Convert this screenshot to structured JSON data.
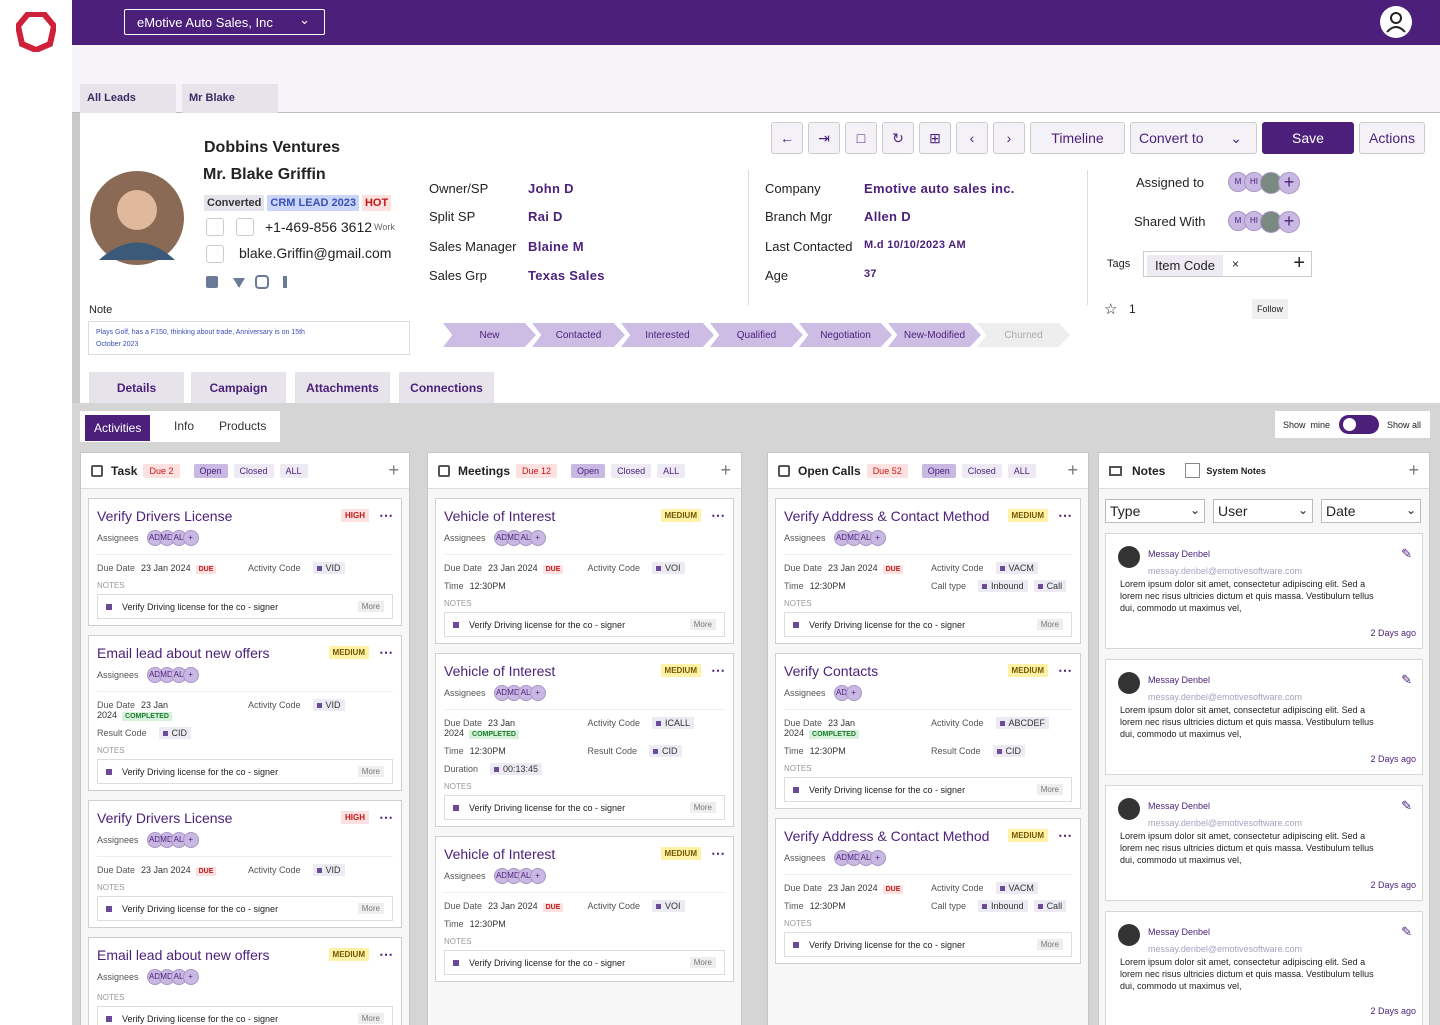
{
  "header": {
    "company_select": "eMotive Auto Sales, Inc"
  },
  "tabs": [
    "All Leads",
    "Mr Blake"
  ],
  "lead": {
    "company": "Dobbins Ventures",
    "name": "Mr. Blake Griffin",
    "badges": [
      "Converted",
      "CRM LEAD 2023",
      "HOT"
    ],
    "phone": "+1-469-856 3612",
    "phone_type": "Work",
    "email": "blake.Griffin@gmail.com",
    "note_label": "Note",
    "note": "Plays Golf, has a F150, thinking about trade, Anniversary is on 15th October 2023"
  },
  "toolbar": {
    "timeline": "Timeline",
    "convert": "Convert to",
    "save": "Save",
    "actions": "Actions"
  },
  "details_left": [
    {
      "label": "Owner/SP",
      "value": "John D"
    },
    {
      "label": "Split SP",
      "value": "Rai D"
    },
    {
      "label": "Sales Manager",
      "value": "Blaine M"
    },
    {
      "label": "Sales Grp",
      "value": "Texas  Sales"
    }
  ],
  "details_right": [
    {
      "label": "Company",
      "value": "Emotive auto sales inc."
    },
    {
      "label": "Branch Mgr",
      "value": "Allen D"
    },
    {
      "label": "Last Contacted",
      "value": "M.d 10/10/2023 AM"
    },
    {
      "label": "Age",
      "value": "37"
    }
  ],
  "sharing": {
    "assigned_label": "Assigned to",
    "assigned_avatars": [
      "M",
      "HI"
    ],
    "shared_label": "Shared With",
    "shared_avatars": [
      "M",
      "HI"
    ],
    "tags_label": "Tags",
    "tag": "Item Code",
    "stars": "1",
    "follow": "Follow"
  },
  "stages": [
    "New",
    "Contacted",
    "Interested",
    "Qualified",
    "Negotiation",
    "New-Modified",
    "Churned"
  ],
  "section_tabs": [
    "Details",
    "Campaign",
    "Attachments",
    "Connections"
  ],
  "sub_tabs": [
    "Activities",
    "Info",
    "Products"
  ],
  "toggle": {
    "left": "Show  mine",
    "right": "Show all"
  },
  "card_labels": {
    "assignees": "Assignees",
    "notes": "NOTES",
    "more": "More"
  },
  "columns": [
    {
      "title": "Task",
      "due": "Due 2",
      "filters": [
        "Open",
        "Closed",
        "ALL"
      ],
      "cards": [
        {
          "title": "Verify Drivers License",
          "priority": "HIGH",
          "assignees": [
            "AD",
            "MD",
            "AL"
          ],
          "fields": [
            {
              "label": "Due Date",
              "value": "23 Jan 2024",
              "status": "DUE"
            },
            {
              "label": "Activity Code",
              "code": "VID"
            }
          ],
          "note": "Verify Driving license for the co - signer"
        },
        {
          "title": "Email lead about new offers",
          "priority": "MEDIUM",
          "assignees": [
            "AD",
            "MD",
            "AL"
          ],
          "fields": [
            {
              "label": "Due Date",
              "value": "23 Jan 2024",
              "status": "COMPLETED"
            },
            {
              "label": "Activity Code",
              "code": "VID"
            },
            {
              "label": "Result Code",
              "code": "CID"
            }
          ],
          "note": "Verify Driving license for the co - signer"
        },
        {
          "title": "Verify Drivers License",
          "priority": "HIGH",
          "assignees": [
            "AD",
            "MD",
            "AL"
          ],
          "fields": [
            {
              "label": "Due Date",
              "value": "23 Jan 2024",
              "status": "DUE"
            },
            {
              "label": "Activity Code",
              "code": "VID"
            }
          ],
          "note": "Verify Driving license for the co - signer"
        },
        {
          "title": "Email lead about new offers",
          "priority": "MEDIUM",
          "assignees": [
            "AD",
            "MD",
            "AL"
          ],
          "fields": [],
          "note": "Verify Driving license for the co - signer"
        }
      ]
    },
    {
      "title": "Meetings",
      "due": "Due 12",
      "filters": [
        "Open",
        "Closed",
        "ALL"
      ],
      "cards": [
        {
          "title": "Vehicle of Interest",
          "priority": "MEDIUM",
          "assignees": [
            "AD",
            "MD",
            "AL"
          ],
          "fields": [
            {
              "label": "Due Date",
              "value": "23 Jan 2024",
              "status": "DUE"
            },
            {
              "label": "Activity Code",
              "code": "VOI"
            },
            {
              "label": "Time",
              "value": "12:30PM"
            }
          ],
          "note": "Verify Driving license for the co - signer"
        },
        {
          "title": "Vehicle of Interest",
          "priority": "MEDIUM",
          "assignees": [
            "AD",
            "MD",
            "AL"
          ],
          "fields": [
            {
              "label": "Due Date",
              "value": "23 Jan 2024",
              "status": "COMPLETED"
            },
            {
              "label": "Activity Code",
              "code": "ICALL"
            },
            {
              "label": "Time",
              "value": "12:30PM"
            },
            {
              "label": "Result Code",
              "code": "CID"
            },
            {
              "label": "Duration",
              "code": "00:13:45"
            }
          ],
          "note": "Verify Driving license for the co - signer"
        },
        {
          "title": "Vehicle of Interest",
          "priority": "MEDIUM",
          "assignees": [
            "AD",
            "MD",
            "AL"
          ],
          "fields": [
            {
              "label": "Due Date",
              "value": "23 Jan 2024",
              "status": "DUE"
            },
            {
              "label": "Activity Code",
              "code": "VOI"
            },
            {
              "label": "Time",
              "value": "12:30PM"
            }
          ],
          "note": "Verify Driving license for the co - signer"
        }
      ]
    },
    {
      "title": "Open Calls",
      "due": "Due 52",
      "filters": [
        "Open",
        "Closed",
        "ALL"
      ],
      "cards": [
        {
          "title": "Verify Address & Contact Method",
          "priority": "MEDIUM",
          "assignees": [
            "AD",
            "MD",
            "AL"
          ],
          "fields": [
            {
              "label": "Due Date",
              "value": "23 Jan 2024",
              "status": "DUE"
            },
            {
              "label": "Activity Code",
              "code": "VACM"
            },
            {
              "label": "Time",
              "value": "12:30PM"
            },
            {
              "label": "Call type",
              "code": "Inbound",
              "code2": "Call"
            }
          ],
          "note": "Verify Driving license for the co - signer"
        },
        {
          "title": "Verify Contacts",
          "priority": "MEDIUM",
          "assignees": [
            "AD"
          ],
          "fields": [
            {
              "label": "Due Date",
              "value": "23 Jan 2024",
              "status": "COMPLETED"
            },
            {
              "label": "Activity Code",
              "code": "ABCDEF"
            },
            {
              "label": "Time",
              "value": "12:30PM"
            },
            {
              "label": "Result Code",
              "code": "CID"
            }
          ],
          "note": "Verify Driving license for the co - signer"
        },
        {
          "title": "Verify Address & Contact Method",
          "priority": "MEDIUM",
          "assignees": [
            "AD",
            "MD",
            "AL"
          ],
          "fields": [
            {
              "label": "Due Date",
              "value": "23 Jan 2024",
              "status": "DUE"
            },
            {
              "label": "Activity Code",
              "code": "VACM"
            },
            {
              "label": "Time",
              "value": "12:30PM"
            },
            {
              "label": "Call type",
              "code": "Inbound",
              "code2": "Call"
            }
          ],
          "note": "Verify Driving license for the co - signer"
        }
      ]
    }
  ],
  "notes_panel": {
    "title": "Notes",
    "system_notes": "System Notes",
    "filters": [
      "Type",
      "User",
      "Date"
    ],
    "entries": [
      {
        "author": "Messay Denbel",
        "email": "messay.denbel@emotivesoftware.com",
        "text": "Lorem ipsum dolor sit amet, consectetur adipiscing elit. Sed a lorem nec risus ultricies dictum et quis massa. Vestibulum tellus dui, commodo ut maximus vel,",
        "time": "2 Days ago"
      },
      {
        "author": "Messay Denbel",
        "email": "messay.denbel@emotivesoftware.com",
        "text": "Lorem ipsum dolor sit amet, consectetur adipiscing elit. Sed a lorem nec risus ultricies dictum et quis massa. Vestibulum tellus dui, commodo ut maximus vel,",
        "time": "2 Days ago"
      },
      {
        "author": "Messay Denbel",
        "email": "messay.denbel@emotivesoftware.com",
        "text": "Lorem ipsum dolor sit amet, consectetur adipiscing elit. Sed a lorem nec risus ultricies dictum et quis massa. Vestibulum tellus dui, commodo ut maximus vel,",
        "time": "2 Days ago"
      },
      {
        "author": "Messay Denbel",
        "email": "messay.denbel@emotivesoftware.com",
        "text": "Lorem ipsum dolor sit amet, consectetur adipiscing elit. Sed a lorem nec risus ultricies dictum et quis massa. Vestibulum tellus dui, commodo ut maximus vel,",
        "time": "2 Days ago"
      }
    ]
  }
}
